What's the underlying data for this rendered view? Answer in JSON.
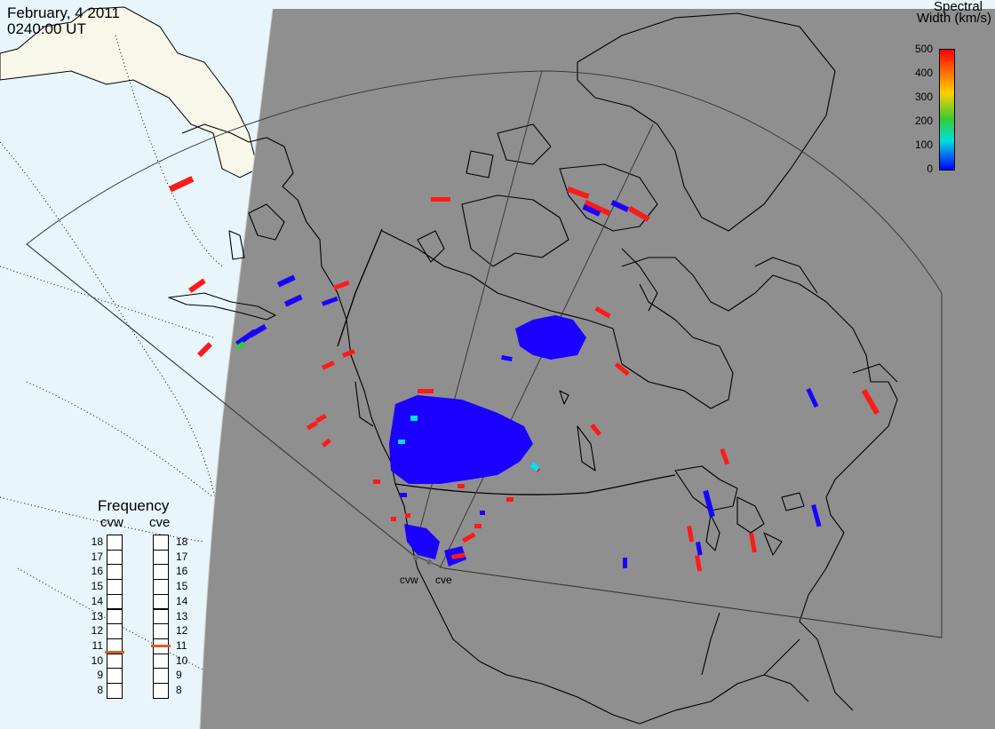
{
  "header": {
    "date": "February, 4 2011",
    "time": "0240:00 UT"
  },
  "legend": {
    "title_line1": "Spectral",
    "title_line2": "Width (km/s)",
    "ticks": [
      "500",
      "400",
      "300",
      "200",
      "100",
      "0"
    ]
  },
  "frequency": {
    "title": "Frequency",
    "radars": [
      {
        "name": "cvw",
        "value_mhz": 10.6
      },
      {
        "name": "cve",
        "value_mhz": 11.0
      }
    ],
    "scale": [
      "18",
      "17",
      "16",
      "15",
      "14",
      "13",
      "12",
      "11",
      "10",
      "9",
      "8"
    ]
  },
  "radar_labels": [
    "cvw",
    "cve"
  ],
  "colors": {
    "ocean": "#e8f6fc",
    "land_day": "#f7f7ea",
    "night": "#8f8f8f",
    "coast": "#000000",
    "red": "#ff1a1a",
    "blue": "#1a00ff",
    "cyan": "#00e0f0",
    "green": "#28d428",
    "marker": "#e05a2a"
  }
}
